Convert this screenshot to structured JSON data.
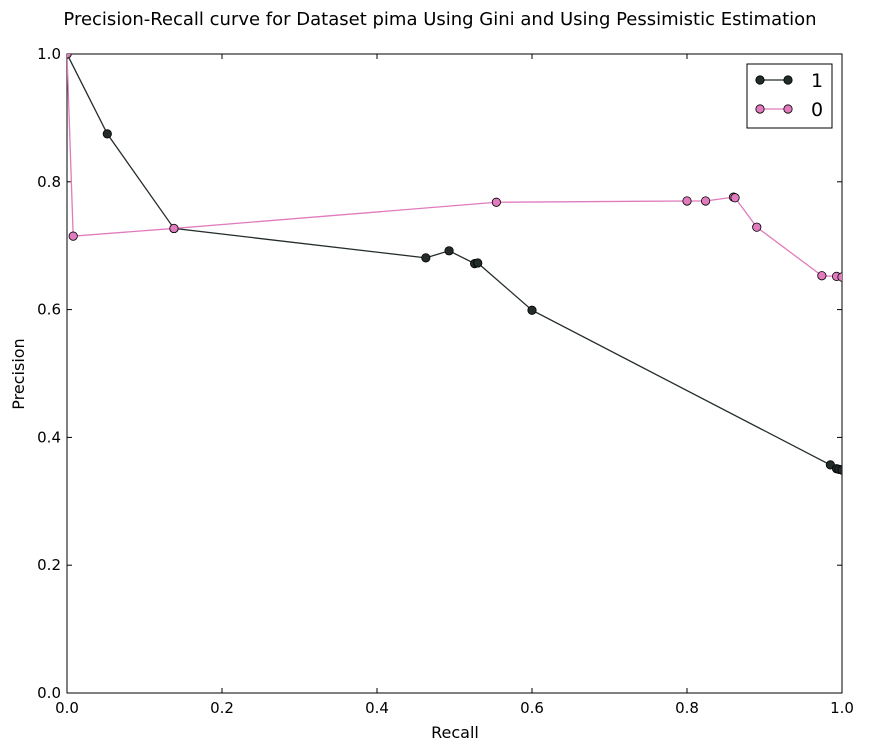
{
  "chart_data": {
    "type": "line",
    "title": "Precision-Recall curve for Dataset pima Using Gini and Using Pessimistic Estimation",
    "xlabel": "Recall",
    "ylabel": "Precision",
    "xlim": [
      0.0,
      1.0
    ],
    "ylim": [
      0.0,
      1.0
    ],
    "xticks": [
      "0.0",
      "0.2",
      "0.4",
      "0.6",
      "0.8",
      "1.0"
    ],
    "yticks": [
      "0.0",
      "0.2",
      "0.4",
      "0.6",
      "0.8",
      "1.0"
    ],
    "grid": false,
    "legend_position": "top-right",
    "series": [
      {
        "name": "1",
        "color": "#232b2b",
        "marker": "circle",
        "x": [
          0.0,
          0.052,
          0.138,
          0.463,
          0.493,
          0.526,
          0.53,
          0.6,
          0.985,
          0.993,
          0.996,
          1.0
        ],
        "y": [
          1.0,
          0.875,
          0.727,
          0.681,
          0.692,
          0.672,
          0.673,
          0.599,
          0.357,
          0.351,
          0.35,
          0.349
        ]
      },
      {
        "name": "0",
        "color": "#e07bbd",
        "marker": "circle",
        "x": [
          0.0,
          0.008,
          0.138,
          0.554,
          0.8,
          0.824,
          0.86,
          0.862,
          0.89,
          0.974,
          0.993,
          1.0
        ],
        "y": [
          1.0,
          0.715,
          0.727,
          0.768,
          0.77,
          0.77,
          0.776,
          0.775,
          0.729,
          0.653,
          0.652,
          0.651
        ]
      }
    ]
  }
}
